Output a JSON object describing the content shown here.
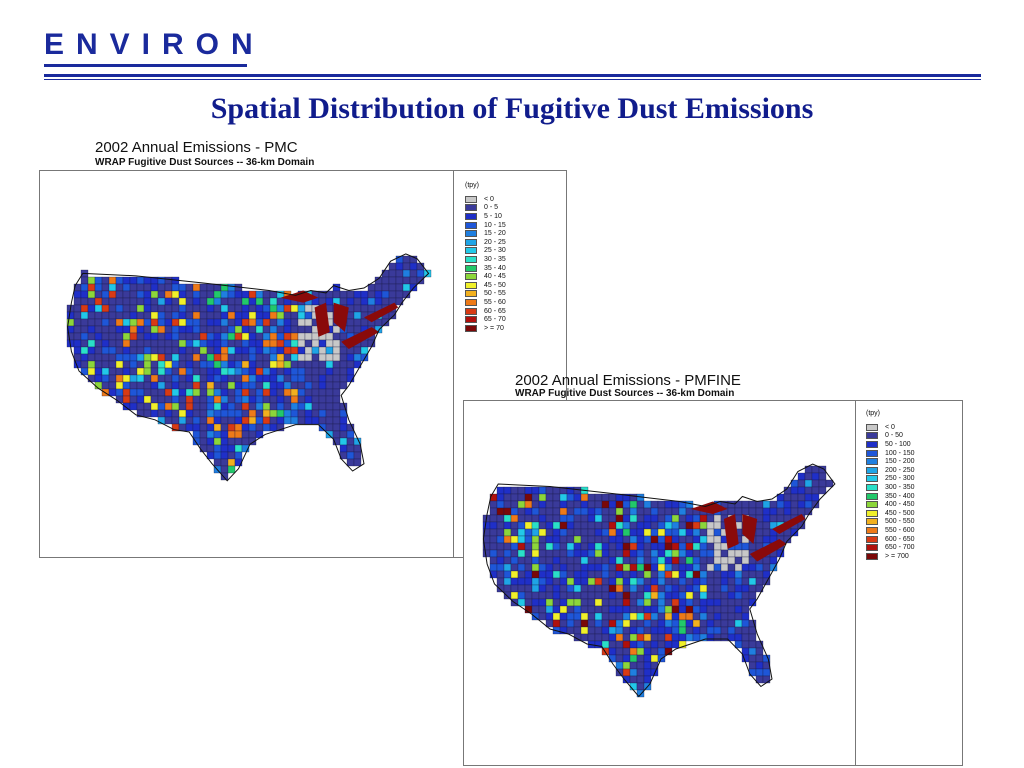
{
  "header": {
    "logo_text": "ENVIRON",
    "brand_color": "#1a2a9c"
  },
  "slide_title": "Spatial Distribution of Fugitive Dust Emissions",
  "maps": [
    {
      "title": "2002 Annual Emissions  - PMC",
      "subtitle": "WRAP Fugitive Dust Sources -- 36-km Domain",
      "legend_unit": "(tpy)",
      "legend": [
        {
          "label": "< 0",
          "color": "#c8c8c8"
        },
        {
          "label": "0 - 5",
          "color": "#3a3a9a"
        },
        {
          "label": "5 - 10",
          "color": "#1f2fc8"
        },
        {
          "label": "10 - 15",
          "color": "#1e56d8"
        },
        {
          "label": "15 - 20",
          "color": "#1f7fe0"
        },
        {
          "label": "20 - 25",
          "color": "#1fa4e6"
        },
        {
          "label": "25 - 30",
          "color": "#22c8e8"
        },
        {
          "label": "30 - 35",
          "color": "#2adfc8"
        },
        {
          "label": "35 - 40",
          "color": "#22c86a"
        },
        {
          "label": "40 - 45",
          "color": "#8cd63a"
        },
        {
          "label": "45 - 50",
          "color": "#f0f02a"
        },
        {
          "label": "50 - 55",
          "color": "#f2b01e"
        },
        {
          "label": "55 - 60",
          "color": "#ee7a18"
        },
        {
          "label": "60 - 65",
          "color": "#d83a14"
        },
        {
          "label": "65 - 70",
          "color": "#b0100c"
        },
        {
          "label": "> = 70",
          "color": "#7a0808"
        }
      ]
    },
    {
      "title": "2002 Annual Emissions  - PMFINE",
      "subtitle": "WRAP Fugitive Dust Sources -- 36-km Domain",
      "legend_unit": "(tpy)",
      "legend": [
        {
          "label": "< 0",
          "color": "#c8c8c8"
        },
        {
          "label": "0 - 50",
          "color": "#3a3a9a"
        },
        {
          "label": "50 - 100",
          "color": "#1f2fc8"
        },
        {
          "label": "100 - 150",
          "color": "#1e56d8"
        },
        {
          "label": "150 - 200",
          "color": "#1f7fe0"
        },
        {
          "label": "200 - 250",
          "color": "#1fa4e6"
        },
        {
          "label": "250 - 300",
          "color": "#22c8e8"
        },
        {
          "label": "300 - 350",
          "color": "#2adfc8"
        },
        {
          "label": "350 - 400",
          "color": "#22c86a"
        },
        {
          "label": "400 - 450",
          "color": "#8cd63a"
        },
        {
          "label": "450 - 500",
          "color": "#f0f02a"
        },
        {
          "label": "500 - 550",
          "color": "#f2b01e"
        },
        {
          "label": "550 - 600",
          "color": "#ee7a18"
        },
        {
          "label": "600 - 650",
          "color": "#d83a14"
        },
        {
          "label": "650 - 700",
          "color": "#b0100c"
        },
        {
          "label": "> = 700",
          "color": "#7a0808"
        }
      ]
    }
  ]
}
